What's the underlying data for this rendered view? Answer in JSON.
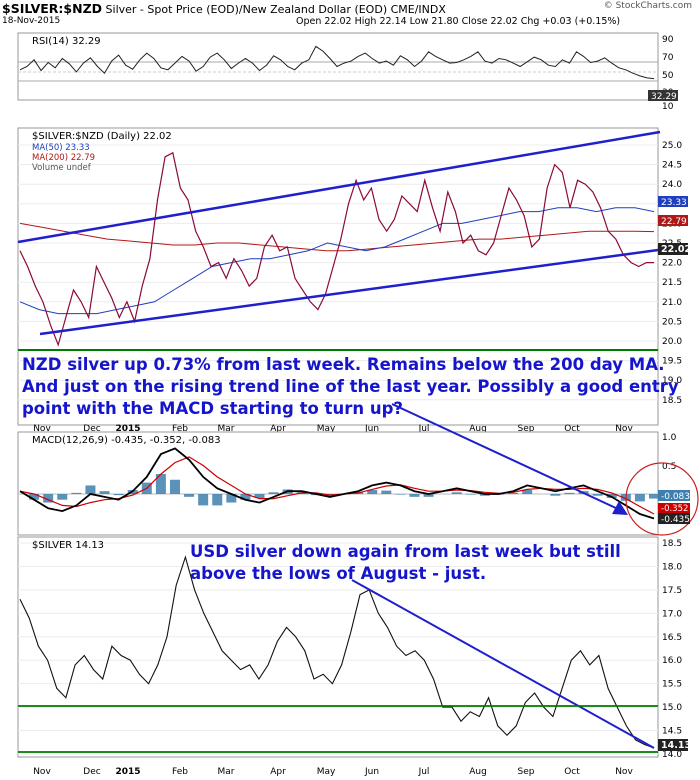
{
  "header": {
    "symbol": "$SILVER:$NZD",
    "description": "Silver - Spot Price (EOD)/New Zealand Dollar (EOD)  CME/INDX",
    "date": "18-Nov-2015",
    "ohlc": "Open 22.02  High 22.14  Low 21.80  Close 22.02  Chg +0.03 (+0.15%)",
    "brand": "© StockCharts.com"
  },
  "chart_data": [
    {
      "type": "line",
      "title": "RSI(14) 32.29",
      "ylim": [
        0,
        100
      ],
      "ticks": [
        "90",
        "70",
        "50",
        "30",
        "10"
      ],
      "last_value_label": "32.29",
      "series": [
        {
          "name": "RSI(14)",
          "values": [
            45,
            50,
            60,
            44,
            56,
            48,
            62,
            54,
            42,
            55,
            63,
            50,
            40,
            58,
            67,
            52,
            46,
            60,
            70,
            62,
            48,
            45,
            55,
            65,
            58,
            43,
            50,
            64,
            70,
            60,
            47,
            55,
            62,
            55,
            44,
            52,
            66,
            60,
            50,
            45,
            55,
            60,
            80,
            73,
            62,
            50,
            55,
            58,
            65,
            70,
            62,
            55,
            58,
            52,
            66,
            60,
            50,
            58,
            72,
            65,
            60,
            55,
            56,
            60,
            65,
            72,
            58,
            55,
            62,
            60,
            55,
            50,
            57,
            64,
            60,
            52,
            50,
            60,
            55,
            72,
            65,
            56,
            58,
            63,
            55,
            48,
            45,
            40,
            36,
            33,
            32
          ]
        }
      ]
    },
    {
      "type": "line",
      "title": "$SILVER:$NZD (Daily) 22.02",
      "legend": [
        "MA(50) 23.33",
        "MA(200) 22.79",
        "Volume undef"
      ],
      "ylim": [
        19.5,
        25.5
      ],
      "ticks": [
        "25.0",
        "24.5",
        "24.0",
        "23.5",
        "23.0",
        "22.5",
        "22.0",
        "21.5",
        "21.0",
        "20.5",
        "20.0",
        "19.5",
        "19.0",
        "18.5"
      ],
      "last_value_labels": [
        "23.33",
        "22.79",
        "22.02"
      ],
      "series": [
        {
          "name": "$SILVER:$NZD",
          "values": [
            22.3,
            21.9,
            21.4,
            21.0,
            20.4,
            19.9,
            20.6,
            21.3,
            21.0,
            20.6,
            21.9,
            21.5,
            21.1,
            20.6,
            21.0,
            20.5,
            21.4,
            22.1,
            23.6,
            24.7,
            24.8,
            23.9,
            23.6,
            22.8,
            22.4,
            21.9,
            22.0,
            21.6,
            22.1,
            21.8,
            21.4,
            21.6,
            22.4,
            22.7,
            22.3,
            22.4,
            21.6,
            21.3,
            21.0,
            20.8,
            21.2,
            21.9,
            22.6,
            23.5,
            24.1,
            23.6,
            23.9,
            23.1,
            22.8,
            23.1,
            23.7,
            23.5,
            23.3,
            24.1,
            23.4,
            22.8,
            23.8,
            23.3,
            22.5,
            22.7,
            22.3,
            22.2,
            22.5,
            23.2,
            23.9,
            23.6,
            23.2,
            22.4,
            22.6,
            23.9,
            24.5,
            24.3,
            23.4,
            24.1,
            24.0,
            23.8,
            23.4,
            22.8,
            22.6,
            22.2,
            22.0,
            21.9,
            22.0,
            22.0
          ]
        },
        {
          "name": "MA(50)",
          "values": [
            21.0,
            20.8,
            20.7,
            20.7,
            20.7,
            20.8,
            20.9,
            21.0,
            21.3,
            21.6,
            21.9,
            22.0,
            22.1,
            22.1,
            22.2,
            22.3,
            22.5,
            22.4,
            22.3,
            22.4,
            22.6,
            22.8,
            23.0,
            23.0,
            23.1,
            23.2,
            23.3,
            23.3,
            23.4,
            23.4,
            23.3,
            23.4,
            23.4,
            23.3
          ]
        },
        {
          "name": "MA(200)",
          "values": [
            23.0,
            22.9,
            22.8,
            22.7,
            22.6,
            22.55,
            22.5,
            22.45,
            22.45,
            22.5,
            22.5,
            22.45,
            22.4,
            22.35,
            22.3,
            22.3,
            22.35,
            22.4,
            22.45,
            22.5,
            22.55,
            22.6,
            22.6,
            22.65,
            22.7,
            22.75,
            22.8,
            22.8,
            22.8,
            22.79
          ]
        }
      ]
    },
    {
      "type": "line",
      "title": "MACD(12,26,9) -0.435, -0.352, -0.083",
      "ylim": [
        -0.5,
        1.0
      ],
      "ticks": [
        "1.0",
        "0.5"
      ],
      "last_value_labels": [
        "-0.083",
        "-0.352",
        "-0.435"
      ],
      "series": [
        {
          "name": "MACD",
          "values": [
            0.05,
            -0.1,
            -0.25,
            -0.3,
            -0.2,
            0.0,
            -0.05,
            -0.1,
            0.05,
            0.3,
            0.7,
            0.8,
            0.6,
            0.3,
            0.1,
            0.0,
            -0.1,
            -0.15,
            -0.05,
            0.05,
            0.05,
            0.0,
            -0.05,
            0.0,
            0.05,
            0.15,
            0.2,
            0.15,
            0.05,
            0.0,
            0.05,
            0.1,
            0.05,
            0.0,
            0.0,
            0.05,
            0.15,
            0.1,
            0.05,
            0.1,
            0.15,
            0.05,
            -0.05,
            -0.2,
            -0.35,
            -0.43
          ]
        },
        {
          "name": "Signal",
          "values": [
            0.05,
            0.0,
            -0.1,
            -0.2,
            -0.22,
            -0.15,
            -0.1,
            -0.08,
            -0.02,
            0.1,
            0.35,
            0.55,
            0.65,
            0.5,
            0.3,
            0.15,
            0.0,
            -0.08,
            -0.08,
            -0.03,
            0.02,
            0.02,
            -0.02,
            0.0,
            0.02,
            0.08,
            0.14,
            0.16,
            0.1,
            0.05,
            0.05,
            0.07,
            0.06,
            0.03,
            0.01,
            0.03,
            0.08,
            0.1,
            0.08,
            0.08,
            0.1,
            0.08,
            0.02,
            -0.08,
            -0.22,
            -0.35
          ]
        }
      ]
    },
    {
      "type": "line",
      "title": "$SILVER 14.13",
      "ylim": [
        14.0,
        18.5
      ],
      "ticks": [
        "18.5",
        "18.0",
        "17.5",
        "17.0",
        "16.5",
        "16.0",
        "15.5",
        "15.0",
        "14.5",
        "14.0"
      ],
      "last_value_label": "14.13",
      "series": [
        {
          "name": "$SILVER",
          "values": [
            17.3,
            16.9,
            16.3,
            16.0,
            15.4,
            15.2,
            15.9,
            16.1,
            15.8,
            15.6,
            16.3,
            16.1,
            16.0,
            15.7,
            15.5,
            15.9,
            16.5,
            17.6,
            18.2,
            17.5,
            17.0,
            16.6,
            16.2,
            16.0,
            15.8,
            15.9,
            15.6,
            15.9,
            16.4,
            16.7,
            16.5,
            16.2,
            15.6,
            15.7,
            15.5,
            15.9,
            16.6,
            17.4,
            17.5,
            17.0,
            16.7,
            16.3,
            16.1,
            16.2,
            16.0,
            15.6,
            15.0,
            15.0,
            14.7,
            14.9,
            14.8,
            15.2,
            14.6,
            14.4,
            14.6,
            15.1,
            15.3,
            15.0,
            14.8,
            15.4,
            16.0,
            16.2,
            15.9,
            16.1,
            15.4,
            15.0,
            14.6,
            14.3,
            14.2,
            14.13
          ]
        }
      ]
    }
  ],
  "x_axis": {
    "labels": [
      "Nov",
      "Dec",
      "2015",
      "Feb",
      "Mar",
      "Apr",
      "May",
      "Jun",
      "Jul",
      "Aug",
      "Sep",
      "Oct",
      "Nov"
    ]
  },
  "annotations": {
    "nzd": [
      "NZD silver up 0.73% from last week. Remains below the 200 day MA.",
      "And just on the rising trend line of the last year. Possibly a good entry",
      "point with the MACD starting to turn up?"
    ],
    "usd": [
      "USD silver down again from last week but still",
      "above the lows of August - just."
    ]
  },
  "colors": {
    "annotation": "#1515cc",
    "trend": "#1f1fcc",
    "ma50": "#1f3fbf",
    "ma200": "#b01818",
    "support": "#007a00",
    "price": "#8b0a3a",
    "macd": "#000000",
    "signal": "#cc0000",
    "histogram": "#3e7fae",
    "circle": "#cc2222",
    "grid": "#d9d9d9"
  }
}
